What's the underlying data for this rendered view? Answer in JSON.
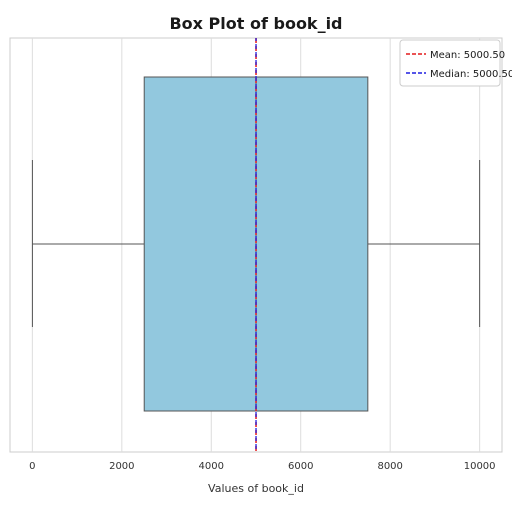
{
  "chart_data": {
    "type": "box",
    "title": "Box Plot of book_id",
    "xlabel": "Values of book_id",
    "ylabel": "",
    "xlim": [
      -500,
      10500
    ],
    "xticks": [
      0,
      2000,
      4000,
      6000,
      8000,
      10000
    ],
    "tick_labels": [
      "0",
      "2000",
      "4000",
      "6000",
      "8000",
      "10000"
    ],
    "grid": true,
    "legend_position": "top-right",
    "box": {
      "min": 1,
      "q1": 2500.75,
      "median": 5000.5,
      "q3": 7500.25,
      "max": 10000,
      "fill_color": "#92c8de",
      "edge_color": "#555555"
    },
    "mean": {
      "value": 5000.5,
      "label": "Mean: 5000.50",
      "color": "#e41a1c"
    },
    "median_line": {
      "value": 5000.5,
      "label": "Median: 5000.50",
      "color": "#1f1fe0"
    }
  }
}
